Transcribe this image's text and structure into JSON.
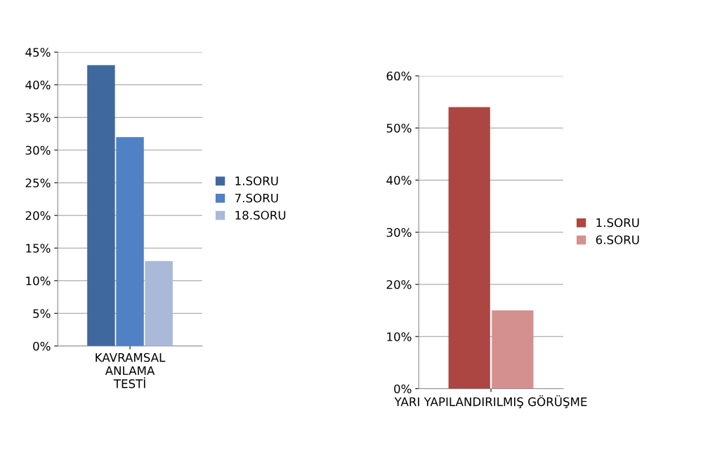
{
  "chart_data": [
    {
      "type": "bar",
      "categories": [
        "KAVRAMSAL\nANLAMA\nTESTİ"
      ],
      "ylim": [
        0,
        45
      ],
      "yticks": [
        {
          "value": 0,
          "label": "0%"
        },
        {
          "value": 5,
          "label": "5%"
        },
        {
          "value": 10,
          "label": "10%"
        },
        {
          "value": 15,
          "label": "15%"
        },
        {
          "value": 20,
          "label": "20%"
        },
        {
          "value": 25,
          "label": "25%"
        },
        {
          "value": 30,
          "label": "30%"
        },
        {
          "value": 35,
          "label": "35%"
        },
        {
          "value": 40,
          "label": "40%"
        },
        {
          "value": 45,
          "label": "45%"
        }
      ],
      "grid": "y",
      "legend": "right",
      "series": [
        {
          "name": "1.SORU",
          "color": "#3f689f",
          "values": [
            43
          ]
        },
        {
          "name": "7.SORU",
          "color": "#4f81c4",
          "values": [
            32
          ]
        },
        {
          "name": "18.SORU",
          "color": "#aab9d8",
          "values": [
            13
          ]
        }
      ]
    },
    {
      "type": "bar",
      "categories": [
        "YARI YAPILANDIRILMIŞ GÖRÜŞME"
      ],
      "ylim": [
        0,
        60
      ],
      "yticks": [
        {
          "value": 0,
          "label": "0%"
        },
        {
          "value": 10,
          "label": "10%"
        },
        {
          "value": 20,
          "label": "20%"
        },
        {
          "value": 30,
          "label": "30%"
        },
        {
          "value": 40,
          "label": "40%"
        },
        {
          "value": 50,
          "label": "50%"
        },
        {
          "value": 60,
          "label": "60%"
        }
      ],
      "grid": "y",
      "legend": "right",
      "series": [
        {
          "name": "1.SORU",
          "color": "#ab4642",
          "values": [
            54
          ]
        },
        {
          "name": "6.SORU",
          "color": "#d4908e",
          "values": [
            15
          ]
        }
      ]
    }
  ]
}
